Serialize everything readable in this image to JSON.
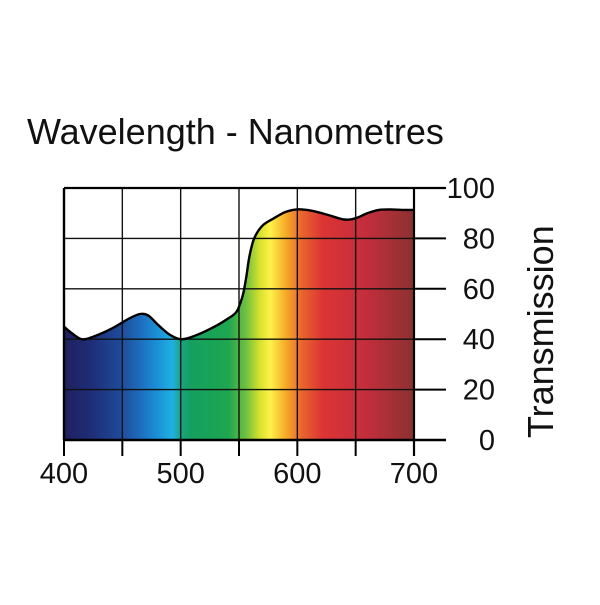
{
  "chart_data": {
    "type": "area",
    "title": "Wavelength - Nanometres",
    "xlabel": "Wavelength - Nanometres",
    "ylabel": "Transmission",
    "xlim": [
      400,
      700
    ],
    "ylim": [
      0,
      100
    ],
    "x_ticks": [
      400,
      500,
      600,
      700
    ],
    "x_tick_labels": [
      "400",
      "500",
      "600",
      "700"
    ],
    "x_gridlines": [
      450,
      500,
      550,
      600,
      650
    ],
    "y_ticks": [
      0,
      20,
      40,
      60,
      80,
      100
    ],
    "y_tick_labels": [
      "0",
      "20",
      "40",
      "60",
      "80",
      "100"
    ],
    "grid": true,
    "fill": "visible spectrum gradient",
    "series": [
      {
        "name": "Transmission",
        "x": [
          400,
          405,
          415,
          425,
          440,
          455,
          465,
          472,
          480,
          490,
          500,
          510,
          525,
          540,
          548,
          553,
          556,
          559,
          563,
          570,
          580,
          590,
          600,
          612,
          625,
          640,
          650,
          660,
          670,
          680,
          690,
          700
        ],
        "y": [
          45,
          43,
          40,
          41,
          44,
          48,
          50,
          49.5,
          46,
          42,
          40,
          41,
          44,
          48,
          51,
          57,
          64,
          73,
          80,
          85,
          88,
          90.5,
          91.5,
          91,
          89.5,
          87.5,
          88,
          90,
          91.3,
          91.5,
          91.3,
          91.3
        ]
      }
    ]
  }
}
